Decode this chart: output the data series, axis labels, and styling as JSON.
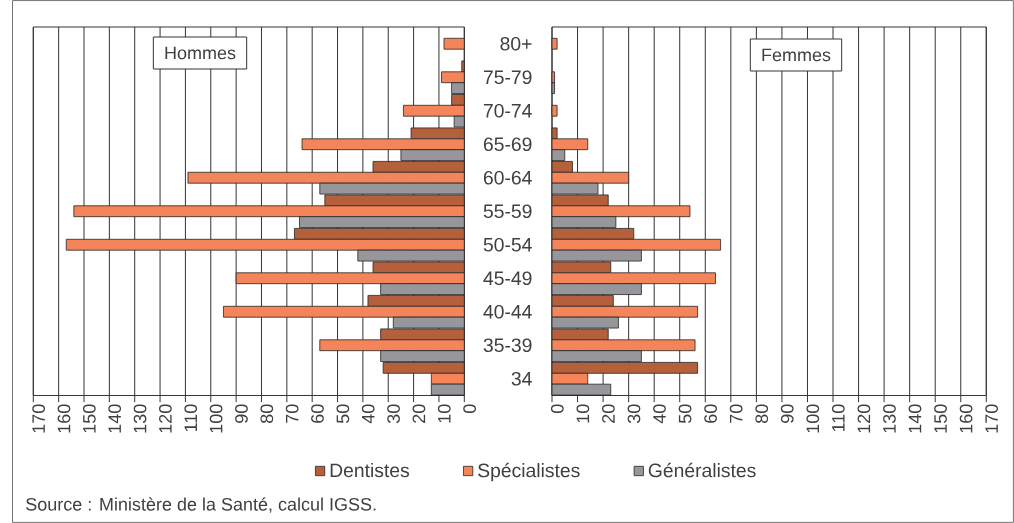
{
  "chart_data": [
    {
      "type": "bar",
      "orientation": "horizontal",
      "title": "Hommes",
      "categories": [
        null,
        null,
        null,
        null,
        null,
        null,
        null,
        null,
        null,
        null,
        null
      ],
      "series": [
        {
          "color": "#b5603c",
          "values": [
            0,
            1,
            5,
            21,
            36,
            55,
            67,
            36,
            38,
            33,
            32
          ]
        },
        {
          "color": "#f4845a",
          "values": [
            8,
            9,
            24,
            64,
            109,
            154,
            157,
            90,
            95,
            57,
            13
          ]
        },
        {
          "color": "#97979b",
          "values": [
            0,
            5,
            4,
            25,
            57,
            65,
            42,
            33,
            28,
            33,
            13
          ]
        }
      ],
      "xlim": [
        170,
        0
      ],
      "xticks": [
        170,
        160,
        150,
        140,
        130,
        120,
        110,
        100,
        90,
        80,
        70,
        60,
        50,
        40,
        30,
        20,
        10,
        0
      ],
      "grid": "x",
      "annotations": [
        "Source : Ministère de la Santé, calcul IGSS."
      ]
    },
    {
      "type": "bar",
      "orientation": "horizontal",
      "title": "Femmes",
      "categories": [
        "80+",
        "75-79",
        "70-74",
        "65-69",
        "60-64",
        "55-59",
        "50-54",
        "45-49",
        "40-44",
        "35-39",
        "34"
      ],
      "series": [
        {
          "name": "Dentistes",
          "color": "#b5603c",
          "values": [
            0,
            0,
            0,
            2,
            8,
            22,
            32,
            23,
            24,
            22,
            57
          ]
        },
        {
          "name": "Spécialistes",
          "color": "#f4845a",
          "values": [
            2,
            1,
            2,
            14,
            30,
            54,
            66,
            64,
            57,
            56,
            14
          ]
        },
        {
          "name": "Généralistes",
          "color": "#97979b",
          "values": [
            0,
            1,
            0,
            5,
            18,
            25,
            35,
            35,
            26,
            35,
            23
          ]
        }
      ],
      "xlim": [
        0,
        170
      ],
      "xticks": [
        0,
        10,
        20,
        30,
        40,
        50,
        60,
        70,
        80,
        90,
        100,
        110,
        120,
        130,
        140,
        150,
        160,
        170
      ],
      "grid": "x",
      "legend": "bottom"
    }
  ]
}
